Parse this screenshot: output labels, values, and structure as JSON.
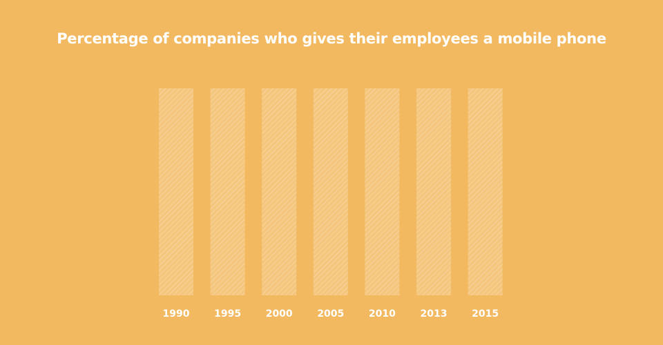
{
  "chart_data": {
    "type": "bar",
    "title": "Percentage of companies who gives their employees a mobile phone",
    "xlabel": "",
    "ylabel": "",
    "categories": [
      "1990",
      "1995",
      "2000",
      "2005",
      "2010",
      "2013",
      "2015"
    ],
    "values": [
      0,
      0,
      0,
      0,
      0,
      0,
      0
    ],
    "ylim": [
      0,
      100
    ],
    "grid": false,
    "colors": {
      "background": "#f2b960",
      "bar_placeholder": "#f5c67d",
      "bar_hatch": "#ffffff",
      "text": "#ffffff"
    }
  }
}
